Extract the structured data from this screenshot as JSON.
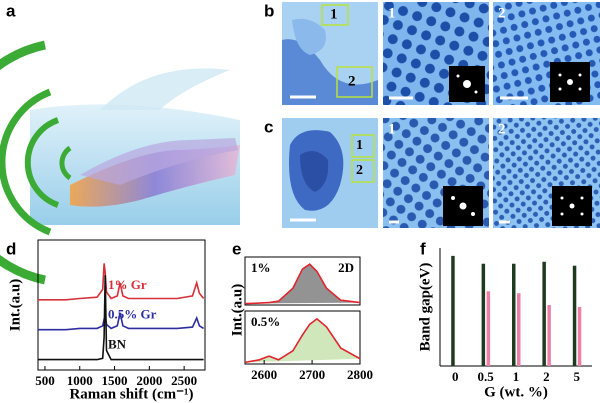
{
  "figure": {
    "panels": [
      "a",
      "b",
      "c",
      "d",
      "e",
      "f"
    ]
  },
  "images": {
    "b": {
      "regions": [
        "1",
        "2"
      ],
      "zooms": [
        "1",
        "2"
      ]
    },
    "c": {
      "regions": [
        "1",
        "2"
      ],
      "zooms": [
        "1",
        "2"
      ]
    }
  },
  "chart_data": [
    {
      "type": "line",
      "ylabel": "Int.(a.u)",
      "xlabel": "Raman shift (cm⁻¹)",
      "xlim": [
        400,
        2800
      ],
      "xticks": [
        500,
        1000,
        1500,
        2000,
        2500
      ],
      "ylim": [
        0,
        10
      ],
      "x": [
        400,
        800,
        1000,
        1250,
        1330,
        1350,
        1366,
        1385,
        1450,
        1540,
        1580,
        1620,
        1700,
        2000,
        2400,
        2620,
        2680,
        2720,
        2780
      ],
      "series": [
        {
          "name": "1% Gr",
          "color": "#d6303a",
          "values": [
            5.4,
            5.4,
            5.5,
            5.6,
            6.2,
            8.2,
            7.5,
            6.0,
            5.5,
            5.7,
            6.7,
            5.7,
            5.5,
            5.5,
            5.5,
            5.7,
            6.7,
            5.9,
            5.5
          ]
        },
        {
          "name": "0.5% Gr",
          "color": "#2d2fa0",
          "values": [
            3.1,
            3.1,
            3.2,
            3.2,
            3.4,
            3.9,
            4.2,
            3.5,
            3.2,
            3.4,
            4.4,
            3.4,
            3.2,
            3.2,
            3.2,
            3.3,
            4.0,
            3.4,
            3.2
          ]
        },
        {
          "name": "BN",
          "color": "#111111",
          "values": [
            0.8,
            0.8,
            0.8,
            0.8,
            0.9,
            2.5,
            7.3,
            1.5,
            0.8,
            0.8,
            0.8,
            0.8,
            0.8,
            0.8,
            0.8,
            0.8,
            0.8,
            0.8,
            0.8
          ]
        }
      ]
    },
    {
      "type": "line",
      "ylabel": "Int.(a.u)",
      "annotation": "2D",
      "xlim": [
        2560,
        2800
      ],
      "xticks": [
        2600,
        2700,
        2800
      ],
      "ylim": [
        0,
        10
      ],
      "x": [
        2560,
        2590,
        2610,
        2630,
        2660,
        2680,
        2695,
        2710,
        2730,
        2760,
        2800
      ],
      "series": [
        {
          "name": "1%",
          "color": "#e0262e",
          "values": [
            0.3,
            0.4,
            0.5,
            0.8,
            3.5,
            7.5,
            8.5,
            7.0,
            3.5,
            1.0,
            0.5
          ]
        },
        {
          "name": "0.5%",
          "color": "#e0262e",
          "values": [
            0.3,
            0.8,
            1.5,
            0.8,
            2.5,
            5.5,
            7.5,
            8.5,
            7.0,
            3.0,
            1.0
          ]
        }
      ]
    },
    {
      "type": "bar",
      "ylabel": "Band gap(eV)",
      "xlabel": "G (wt. %)",
      "categories": [
        "0",
        "0.5",
        "1",
        "2",
        "5"
      ],
      "ylim": [
        0,
        6
      ],
      "series": [
        {
          "color": "#1f3b1f",
          "values": [
            5.6,
            5.2,
            5.2,
            5.3,
            5.1
          ]
        },
        {
          "color": "#ee7fa6",
          "values": [
            null,
            3.8,
            3.7,
            3.1,
            3.0
          ]
        }
      ]
    }
  ]
}
